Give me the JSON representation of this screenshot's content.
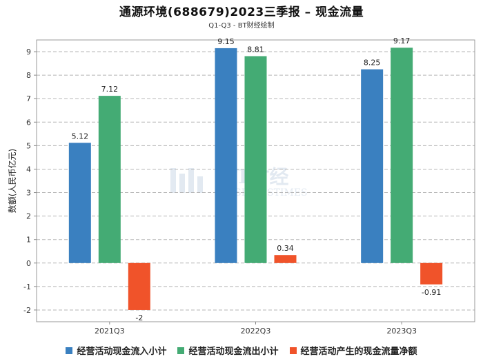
{
  "chart_data": {
    "type": "bar",
    "title": "通源环境(688679)2023三季报 – 现金流量",
    "subtitle": "Q1-Q3 - BT财经绘制",
    "ylabel": "数额(人民币亿元)",
    "xlabel": "",
    "categories": [
      "2021Q3",
      "2022Q3",
      "2023Q3"
    ],
    "ylim": [
      -2.5,
      9.5
    ],
    "yticks": [
      -2,
      -1,
      0,
      1,
      2,
      3,
      4,
      5,
      6,
      7,
      8,
      9
    ],
    "grid": true,
    "legend_position": "bottom",
    "series": [
      {
        "name": "经营活动现金流入小计",
        "color": "#3a80c0",
        "values": [
          5.12,
          9.15,
          8.25
        ]
      },
      {
        "name": "经营活动现金流出小计",
        "color": "#44ab74",
        "values": [
          7.12,
          8.81,
          9.17
        ]
      },
      {
        "name": "经营活动产生的现金流量净额",
        "color": "#f0532a",
        "values": [
          -2,
          0.34,
          -0.91
        ]
      }
    ],
    "value_labels": [
      [
        "5.12",
        "9.15",
        "8.25"
      ],
      [
        "7.12",
        "8.81",
        "9.17"
      ],
      [
        "-2",
        "0.34",
        "-0.91"
      ]
    ]
  },
  "watermark": {
    "brand": "BT财经",
    "sub": "BUSINESSTIMES"
  }
}
